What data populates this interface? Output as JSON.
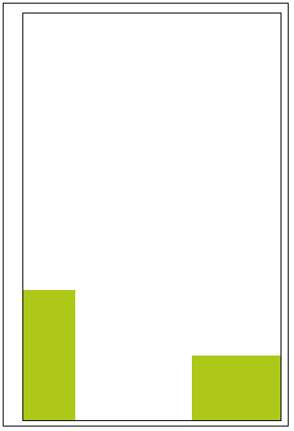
{
  "colors": {
    "block_fill": "#adc819",
    "frame_border": "#000000",
    "background": "#ffffff"
  },
  "blocks": [
    {
      "id": "left-block",
      "level": 0.32
    },
    {
      "id": "right-block",
      "level": 0.16
    }
  ]
}
